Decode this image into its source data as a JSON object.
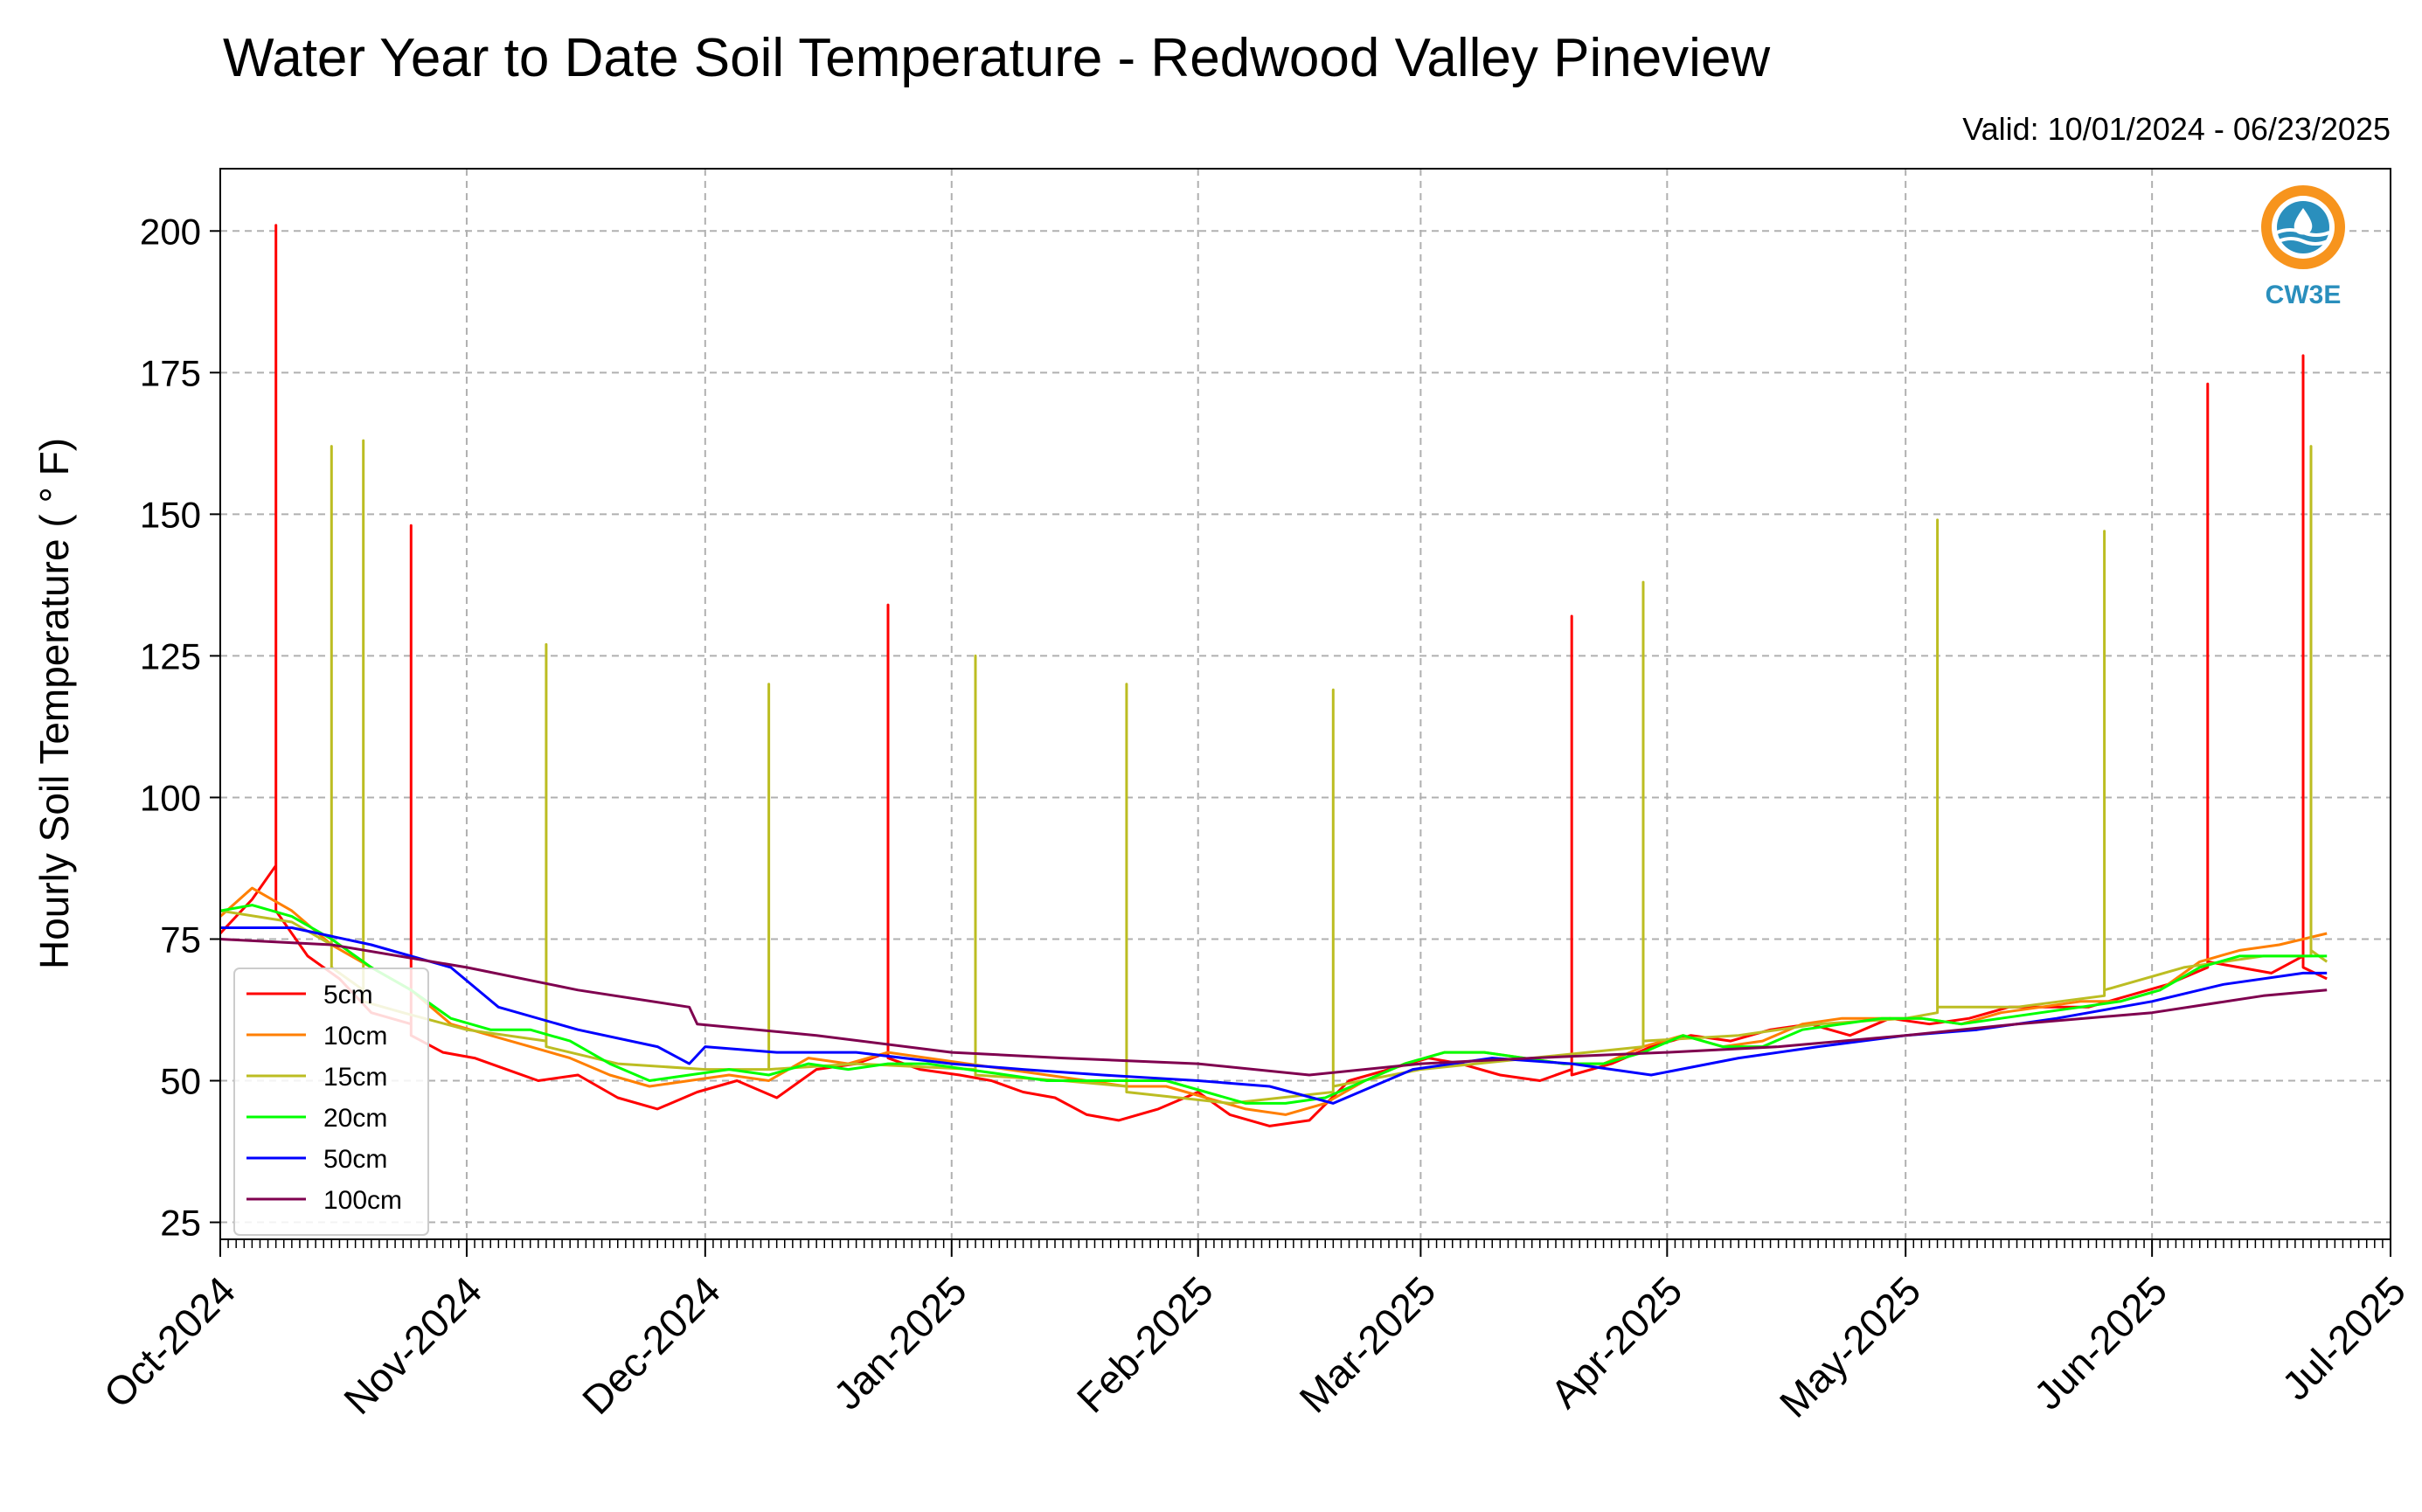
{
  "chart_data": {
    "type": "line",
    "title": "Water Year to Date Soil Temperature - Redwood Valley Pineview",
    "subtitle": "Valid: 10/01/2024 - 06/23/2025",
    "ylabel": "Hourly Soil Temperature ( ° F)",
    "xlabel": "",
    "ylim": [
      22,
      211
    ],
    "yticks": [
      25,
      50,
      75,
      100,
      125,
      150,
      175,
      200
    ],
    "xlim": [
      "2024-10-01",
      "2025-07-01"
    ],
    "xticks": [
      "Oct-2024",
      "Nov-2024",
      "Dec-2024",
      "Jan-2025",
      "Feb-2025",
      "Mar-2025",
      "Apr-2025",
      "May-2025",
      "Jun-2025",
      "Jul-2025"
    ],
    "grid": true,
    "legend_position": "lower-left",
    "logo_text": "CW3E",
    "series": [
      {
        "name": "5cm",
        "color": "#ff0000",
        "x": [
          "2024-10-01",
          "2024-10-05",
          "2024-10-08",
          "2024-10-08",
          "2024-10-08",
          "2024-10-12",
          "2024-10-16",
          "2024-10-20",
          "2024-10-25",
          "2024-10-25",
          "2024-10-25",
          "2024-10-29",
          "2024-11-02",
          "2024-11-06",
          "2024-11-10",
          "2024-11-15",
          "2024-11-20",
          "2024-11-25",
          "2024-11-30",
          "2024-12-05",
          "2024-12-10",
          "2024-12-15",
          "2024-12-20",
          "2024-12-24",
          "2024-12-24",
          "2024-12-24",
          "2024-12-28",
          "2025-01-02",
          "2025-01-06",
          "2025-01-10",
          "2025-01-14",
          "2025-01-18",
          "2025-01-22",
          "2025-01-27",
          "2025-02-01",
          "2025-02-05",
          "2025-02-10",
          "2025-02-15",
          "2025-02-20",
          "2025-02-25",
          "2025-03-02",
          "2025-03-06",
          "2025-03-11",
          "2025-03-16",
          "2025-03-20",
          "2025-03-20",
          "2025-03-20",
          "2025-03-25",
          "2025-03-30",
          "2025-04-04",
          "2025-04-09",
          "2025-04-14",
          "2025-04-19",
          "2025-04-24",
          "2025-04-29",
          "2025-05-04",
          "2025-05-09",
          "2025-05-14",
          "2025-05-19",
          "2025-05-24",
          "2025-05-29",
          "2025-06-03",
          "2025-06-08",
          "2025-06-08",
          "2025-06-08",
          "2025-06-12",
          "2025-06-16",
          "2025-06-20",
          "2025-06-20",
          "2025-06-20",
          "2025-06-23"
        ],
        "y": [
          76,
          82,
          88,
          201,
          80,
          72,
          68,
          62,
          60,
          148,
          58,
          55,
          54,
          52,
          50,
          51,
          47,
          45,
          48,
          50,
          47,
          52,
          53,
          55,
          134,
          54,
          52,
          51,
          50,
          48,
          47,
          44,
          43,
          45,
          48,
          44,
          42,
          43,
          50,
          52,
          54,
          53,
          51,
          50,
          52,
          132,
          51,
          53,
          56,
          58,
          57,
          59,
          60,
          58,
          61,
          60,
          61,
          63,
          63,
          63,
          65,
          67,
          70,
          173,
          71,
          70,
          69,
          72,
          178,
          70,
          68
        ]
      },
      {
        "name": "10cm",
        "color": "#ff7f00",
        "x": [
          "2024-10-01",
          "2024-10-05",
          "2024-10-10",
          "2024-10-15",
          "2024-10-20",
          "2024-10-25",
          "2024-10-30",
          "2024-11-04",
          "2024-11-09",
          "2024-11-14",
          "2024-11-19",
          "2024-11-24",
          "2024-11-29",
          "2024-12-04",
          "2024-12-09",
          "2024-12-14",
          "2024-12-19",
          "2024-12-24",
          "2024-12-29",
          "2025-01-03",
          "2025-01-08",
          "2025-01-13",
          "2025-01-18",
          "2025-01-23",
          "2025-01-28",
          "2025-02-02",
          "2025-02-07",
          "2025-02-12",
          "2025-02-17",
          "2025-02-22",
          "2025-02-27",
          "2025-03-04",
          "2025-03-09",
          "2025-03-14",
          "2025-03-19",
          "2025-03-24",
          "2025-03-29",
          "2025-04-03",
          "2025-04-08",
          "2025-04-13",
          "2025-04-18",
          "2025-04-23",
          "2025-04-28",
          "2025-05-03",
          "2025-05-08",
          "2025-05-13",
          "2025-05-18",
          "2025-05-23",
          "2025-05-28",
          "2025-06-02",
          "2025-06-07",
          "2025-06-12",
          "2025-06-17",
          "2025-06-23"
        ],
        "y": [
          79,
          84,
          80,
          74,
          70,
          66,
          60,
          58,
          56,
          54,
          51,
          49,
          50,
          51,
          50,
          54,
          53,
          55,
          54,
          53,
          52,
          51,
          50,
          49,
          49,
          47,
          45,
          44,
          46,
          50,
          53,
          55,
          55,
          54,
          53,
          53,
          56,
          58,
          56,
          57,
          60,
          61,
          61,
          61,
          60,
          62,
          63,
          64,
          64,
          66,
          71,
          73,
          74,
          76
        ]
      },
      {
        "name": "15cm",
        "color": "#bcbd22",
        "x": [
          "2024-10-01",
          "2024-10-10",
          "2024-10-15",
          "2024-10-15",
          "2024-10-15",
          "2024-10-19",
          "2024-10-19",
          "2024-10-19",
          "2024-10-24",
          "2024-11-01",
          "2024-11-11",
          "2024-11-11",
          "2024-11-11",
          "2024-11-20",
          "2024-12-01",
          "2024-12-09",
          "2024-12-09",
          "2024-12-09",
          "2024-12-20",
          "2025-01-04",
          "2025-01-04",
          "2025-01-04",
          "2025-01-15",
          "2025-01-23",
          "2025-01-23",
          "2025-01-23",
          "2025-02-05",
          "2025-02-18",
          "2025-02-18",
          "2025-02-18",
          "2025-03-01",
          "2025-03-29",
          "2025-03-29",
          "2025-03-29",
          "2025-04-10",
          "2025-04-20",
          "2025-05-01",
          "2025-05-05",
          "2025-05-05",
          "2025-05-05",
          "2025-05-15",
          "2025-05-26",
          "2025-05-26",
          "2025-05-26",
          "2025-06-05",
          "2025-06-15",
          "2025-06-21",
          "2025-06-21",
          "2025-06-21",
          "2025-06-23"
        ],
        "y": [
          80,
          78,
          74,
          162,
          70,
          66,
          163,
          64,
          62,
          59,
          57,
          127,
          56,
          53,
          52,
          52,
          120,
          52,
          53,
          52,
          125,
          51,
          50,
          49,
          120,
          48,
          46,
          48,
          119,
          49,
          52,
          56,
          138,
          57,
          58,
          60,
          61,
          62,
          149,
          63,
          63,
          65,
          147,
          66,
          70,
          72,
          72,
          162,
          73,
          71
        ]
      },
      {
        "name": "20cm",
        "color": "#00ff00",
        "x": [
          "2024-10-01",
          "2024-10-05",
          "2024-10-10",
          "2024-10-15",
          "2024-10-20",
          "2024-10-25",
          "2024-10-30",
          "2024-11-04",
          "2024-11-09",
          "2024-11-14",
          "2024-11-19",
          "2024-11-24",
          "2024-11-29",
          "2024-12-04",
          "2024-12-09",
          "2024-12-14",
          "2024-12-19",
          "2024-12-24",
          "2024-12-29",
          "2025-01-03",
          "2025-01-08",
          "2025-01-13",
          "2025-01-18",
          "2025-01-23",
          "2025-01-28",
          "2025-02-02",
          "2025-02-07",
          "2025-02-12",
          "2025-02-17",
          "2025-02-22",
          "2025-02-27",
          "2025-03-04",
          "2025-03-09",
          "2025-03-14",
          "2025-03-19",
          "2025-03-24",
          "2025-03-29",
          "2025-04-03",
          "2025-04-08",
          "2025-04-13",
          "2025-04-18",
          "2025-04-23",
          "2025-04-28",
          "2025-05-03",
          "2025-05-08",
          "2025-05-13",
          "2025-05-18",
          "2025-05-23",
          "2025-05-28",
          "2025-06-02",
          "2025-06-07",
          "2025-06-12",
          "2025-06-17",
          "2025-06-23"
        ],
        "y": [
          80,
          81,
          79,
          75,
          70,
          66,
          61,
          59,
          59,
          57,
          53,
          50,
          51,
          52,
          51,
          53,
          52,
          53,
          53,
          52,
          51,
          50,
          50,
          50,
          50,
          48,
          46,
          46,
          47,
          50,
          53,
          55,
          55,
          54,
          53,
          53,
          55,
          58,
          56,
          56,
          59,
          60,
          61,
          61,
          60,
          61,
          62,
          63,
          64,
          66,
          70,
          72,
          72,
          72
        ]
      },
      {
        "name": "50cm",
        "color": "#0000ff",
        "x": [
          "2024-10-01",
          "2024-10-10",
          "2024-10-20",
          "2024-10-30",
          "2024-11-05",
          "2024-11-15",
          "2024-11-25",
          "2024-11-29",
          "2024-12-01",
          "2024-12-10",
          "2024-12-20",
          "2025-01-01",
          "2025-01-10",
          "2025-01-20",
          "2025-02-01",
          "2025-02-10",
          "2025-02-18",
          "2025-02-28",
          "2025-03-10",
          "2025-03-20",
          "2025-03-30",
          "2025-04-10",
          "2025-04-20",
          "2025-05-01",
          "2025-05-10",
          "2025-05-20",
          "2025-06-01",
          "2025-06-10",
          "2025-06-20",
          "2025-06-23"
        ],
        "y": [
          77,
          77,
          74,
          70,
          63,
          59,
          56,
          53,
          56,
          55,
          55,
          53,
          52,
          51,
          50,
          49,
          46,
          52,
          54,
          53,
          51,
          54,
          56,
          58,
          59,
          61,
          64,
          67,
          69,
          69
        ]
      },
      {
        "name": "100cm",
        "color": "#7f004f",
        "x": [
          "2024-10-01",
          "2024-10-15",
          "2024-11-01",
          "2024-11-15",
          "2024-11-29",
          "2024-11-30",
          "2024-12-15",
          "2025-01-01",
          "2025-01-15",
          "2025-02-01",
          "2025-02-15",
          "2025-03-01",
          "2025-03-15",
          "2025-04-01",
          "2025-04-15",
          "2025-05-01",
          "2025-05-15",
          "2025-06-01",
          "2025-06-15",
          "2025-06-23"
        ],
        "y": [
          75,
          74,
          70,
          66,
          63,
          60,
          58,
          55,
          54,
          53,
          51,
          53,
          54,
          55,
          56,
          58,
          60,
          62,
          65,
          66
        ]
      }
    ]
  }
}
